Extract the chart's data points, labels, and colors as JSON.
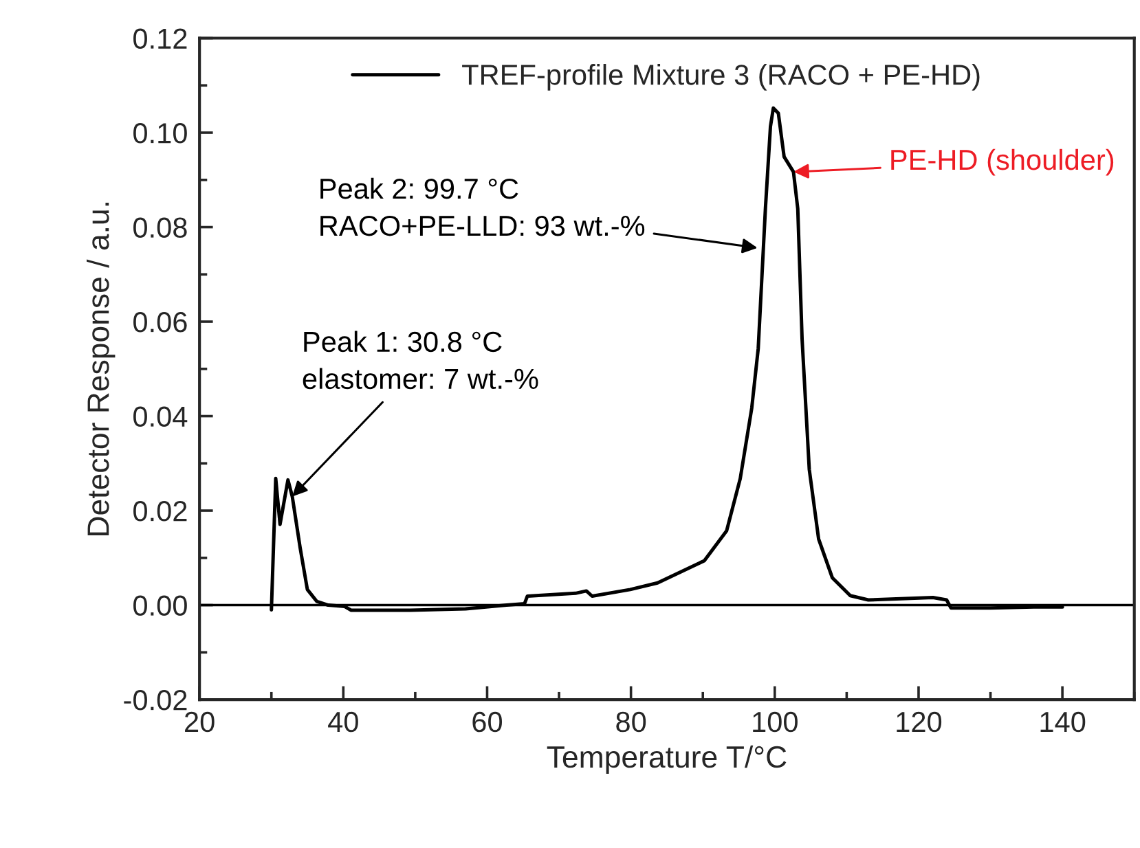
{
  "chart_data": {
    "type": "line",
    "xlabel": "Temperature T/°C",
    "ylabel": "Detector Response / a.u.",
    "xlim": [
      20,
      150
    ],
    "xticks": [
      20,
      40,
      60,
      80,
      100,
      120,
      140
    ],
    "ylim": [
      -0.02,
      0.12
    ],
    "yticks": [
      {
        "value": -0.02,
        "label": "-0.02"
      },
      {
        "value": 0,
        "label": "0.00"
      },
      {
        "value": 0.02,
        "label": "0.02"
      },
      {
        "value": 0.04,
        "label": "0.04"
      },
      {
        "value": 0.06,
        "label": "0.06"
      },
      {
        "value": 0.08,
        "label": "0.08"
      },
      {
        "value": 0.1,
        "label": "0.10"
      },
      {
        "value": 0.12,
        "label": "0.12"
      }
    ],
    "grid": false,
    "legend": "top",
    "marker": "none",
    "line_style": "solid",
    "ref_lines": [
      {
        "axis": "y",
        "value": 0,
        "color": "#000000"
      }
    ],
    "annotations": [
      {
        "text": "Peak 1: 30.8 °C\nelastomer: 7 wt.-%",
        "x": 32.9,
        "y": 0.023
      },
      {
        "text": "Peak 2: 99.7 °C\nRACO+PE-LLD: 93 wt.-%",
        "x": 97.6,
        "y": 0.0756
      },
      {
        "text": "PE-HD (shoulder)",
        "x": 102.6,
        "y": 0.0917
      }
    ],
    "series": [
      {
        "name": "TREF-profile Mixture 3 (RACO + PE-HD)",
        "color": "#000000",
        "x": [
          30.0,
          30.6,
          31.2,
          32.3,
          32.9,
          34.0,
          35.0,
          36.3,
          37.9,
          40.2,
          41.1,
          49.3,
          57.0,
          62.7,
          65.2,
          65.6,
          72.3,
          73.8,
          74.6,
          79.9,
          83.7,
          90.2,
          93.3,
          95.2,
          96.8,
          97.7,
          98.7,
          99.4,
          99.8,
          100.5,
          101.3,
          102.6,
          103.2,
          103.8,
          104.8,
          106.1,
          108.0,
          110.5,
          113.0,
          122.0,
          123.9,
          124.5,
          130.0,
          136.0,
          140.0
        ],
        "values": [
          -0.001,
          0.0268,
          0.0171,
          0.0265,
          0.023,
          0.0121,
          0.0033,
          0.0008,
          0.0,
          -0.0003,
          -0.0011,
          -0.0011,
          -0.0008,
          0.0,
          0.0003,
          0.0019,
          0.0025,
          0.003,
          0.0019,
          0.0033,
          0.0047,
          0.0094,
          0.0157,
          0.0268,
          0.0417,
          0.0543,
          0.0839,
          0.1013,
          0.1052,
          0.1041,
          0.0949,
          0.0917,
          0.0839,
          0.0563,
          0.0287,
          0.014,
          0.0058,
          0.002,
          0.0011,
          0.0016,
          0.0011,
          -0.0006,
          -0.0006,
          -0.0004,
          -0.0004
        ]
      }
    ]
  }
}
